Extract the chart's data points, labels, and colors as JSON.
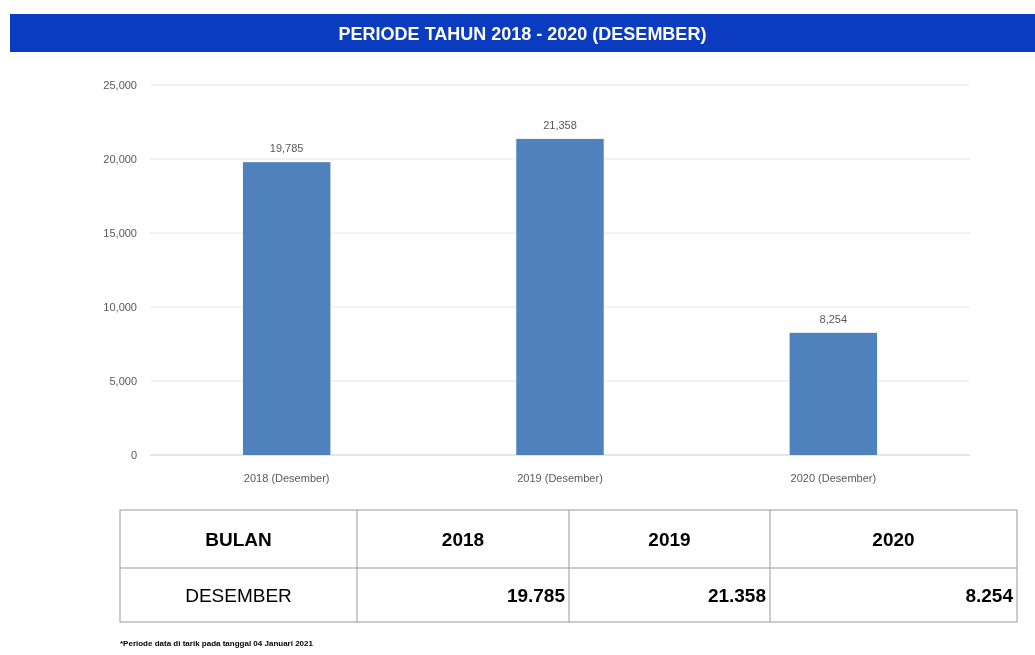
{
  "chart_data": {
    "type": "bar",
    "title": "PERIODE TAHUN 2018 - 2020 (DESEMBER)",
    "categories": [
      "2018 (Desember)",
      "2019 (Desember)",
      "2020 (Desember)"
    ],
    "values": [
      19785,
      21358,
      8254
    ],
    "color": "#4f81bd",
    "value_labels": [
      "19,785",
      "21,358",
      "8,254"
    ],
    "ylim": [
      0,
      25000
    ],
    "yticks": [
      {
        "value": 0,
        "label": "0"
      },
      {
        "value": 5000,
        "label": "5,000"
      },
      {
        "value": 10000,
        "label": "10,000"
      },
      {
        "value": 15000,
        "label": "15,000"
      },
      {
        "value": 20000,
        "label": "20,000"
      },
      {
        "value": 25000,
        "label": "25,000"
      }
    ],
    "grid": "y",
    "annotations": [
      "BULAN",
      "2018",
      "2019",
      "2020",
      "DESEMBER",
      "19.785",
      "21.358",
      "8.254",
      "*Periode data di tarik pada tanggal 04 Januari 2021"
    ]
  }
}
